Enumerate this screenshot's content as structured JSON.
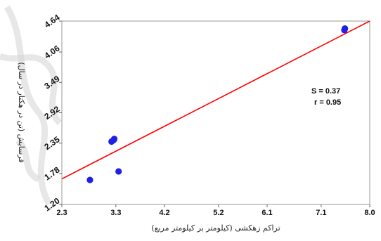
{
  "chart_data": {
    "type": "scatter",
    "xlabel": "تراکم زهکشی (کیلومتر بر کیلومتر مربع)",
    "ylabel": "فرسایش (تن در هکتار در سال)",
    "xlim": [
      2.3,
      8.0
    ],
    "ylim": [
      1.2,
      4.64
    ],
    "x_ticks": [
      "2.3",
      "3.3",
      "4.2",
      "5.2",
      "6.1",
      "7.1",
      "8.0"
    ],
    "y_ticks": [
      "1.20",
      "1.78",
      "2.35",
      "2.92",
      "3.49",
      "4.06",
      "4.64"
    ],
    "points": [
      {
        "x": 2.82,
        "y": 1.66
      },
      {
        "x": 3.22,
        "y": 2.38
      },
      {
        "x": 3.26,
        "y": 2.41
      },
      {
        "x": 3.27,
        "y": 2.43
      },
      {
        "x": 3.35,
        "y": 1.82
      },
      {
        "x": 7.53,
        "y": 4.47
      },
      {
        "x": 7.54,
        "y": 4.5
      }
    ],
    "fit_line": {
      "x": [
        2.3,
        8.0
      ],
      "y": [
        1.68,
        4.64
      ]
    },
    "stats": {
      "s": "S = 0.37",
      "r": "r = 0.95"
    },
    "grid": false,
    "colors": {
      "points": "#1f1fe6",
      "line": "#ff0000",
      "frame": "#9a9a9a"
    }
  }
}
